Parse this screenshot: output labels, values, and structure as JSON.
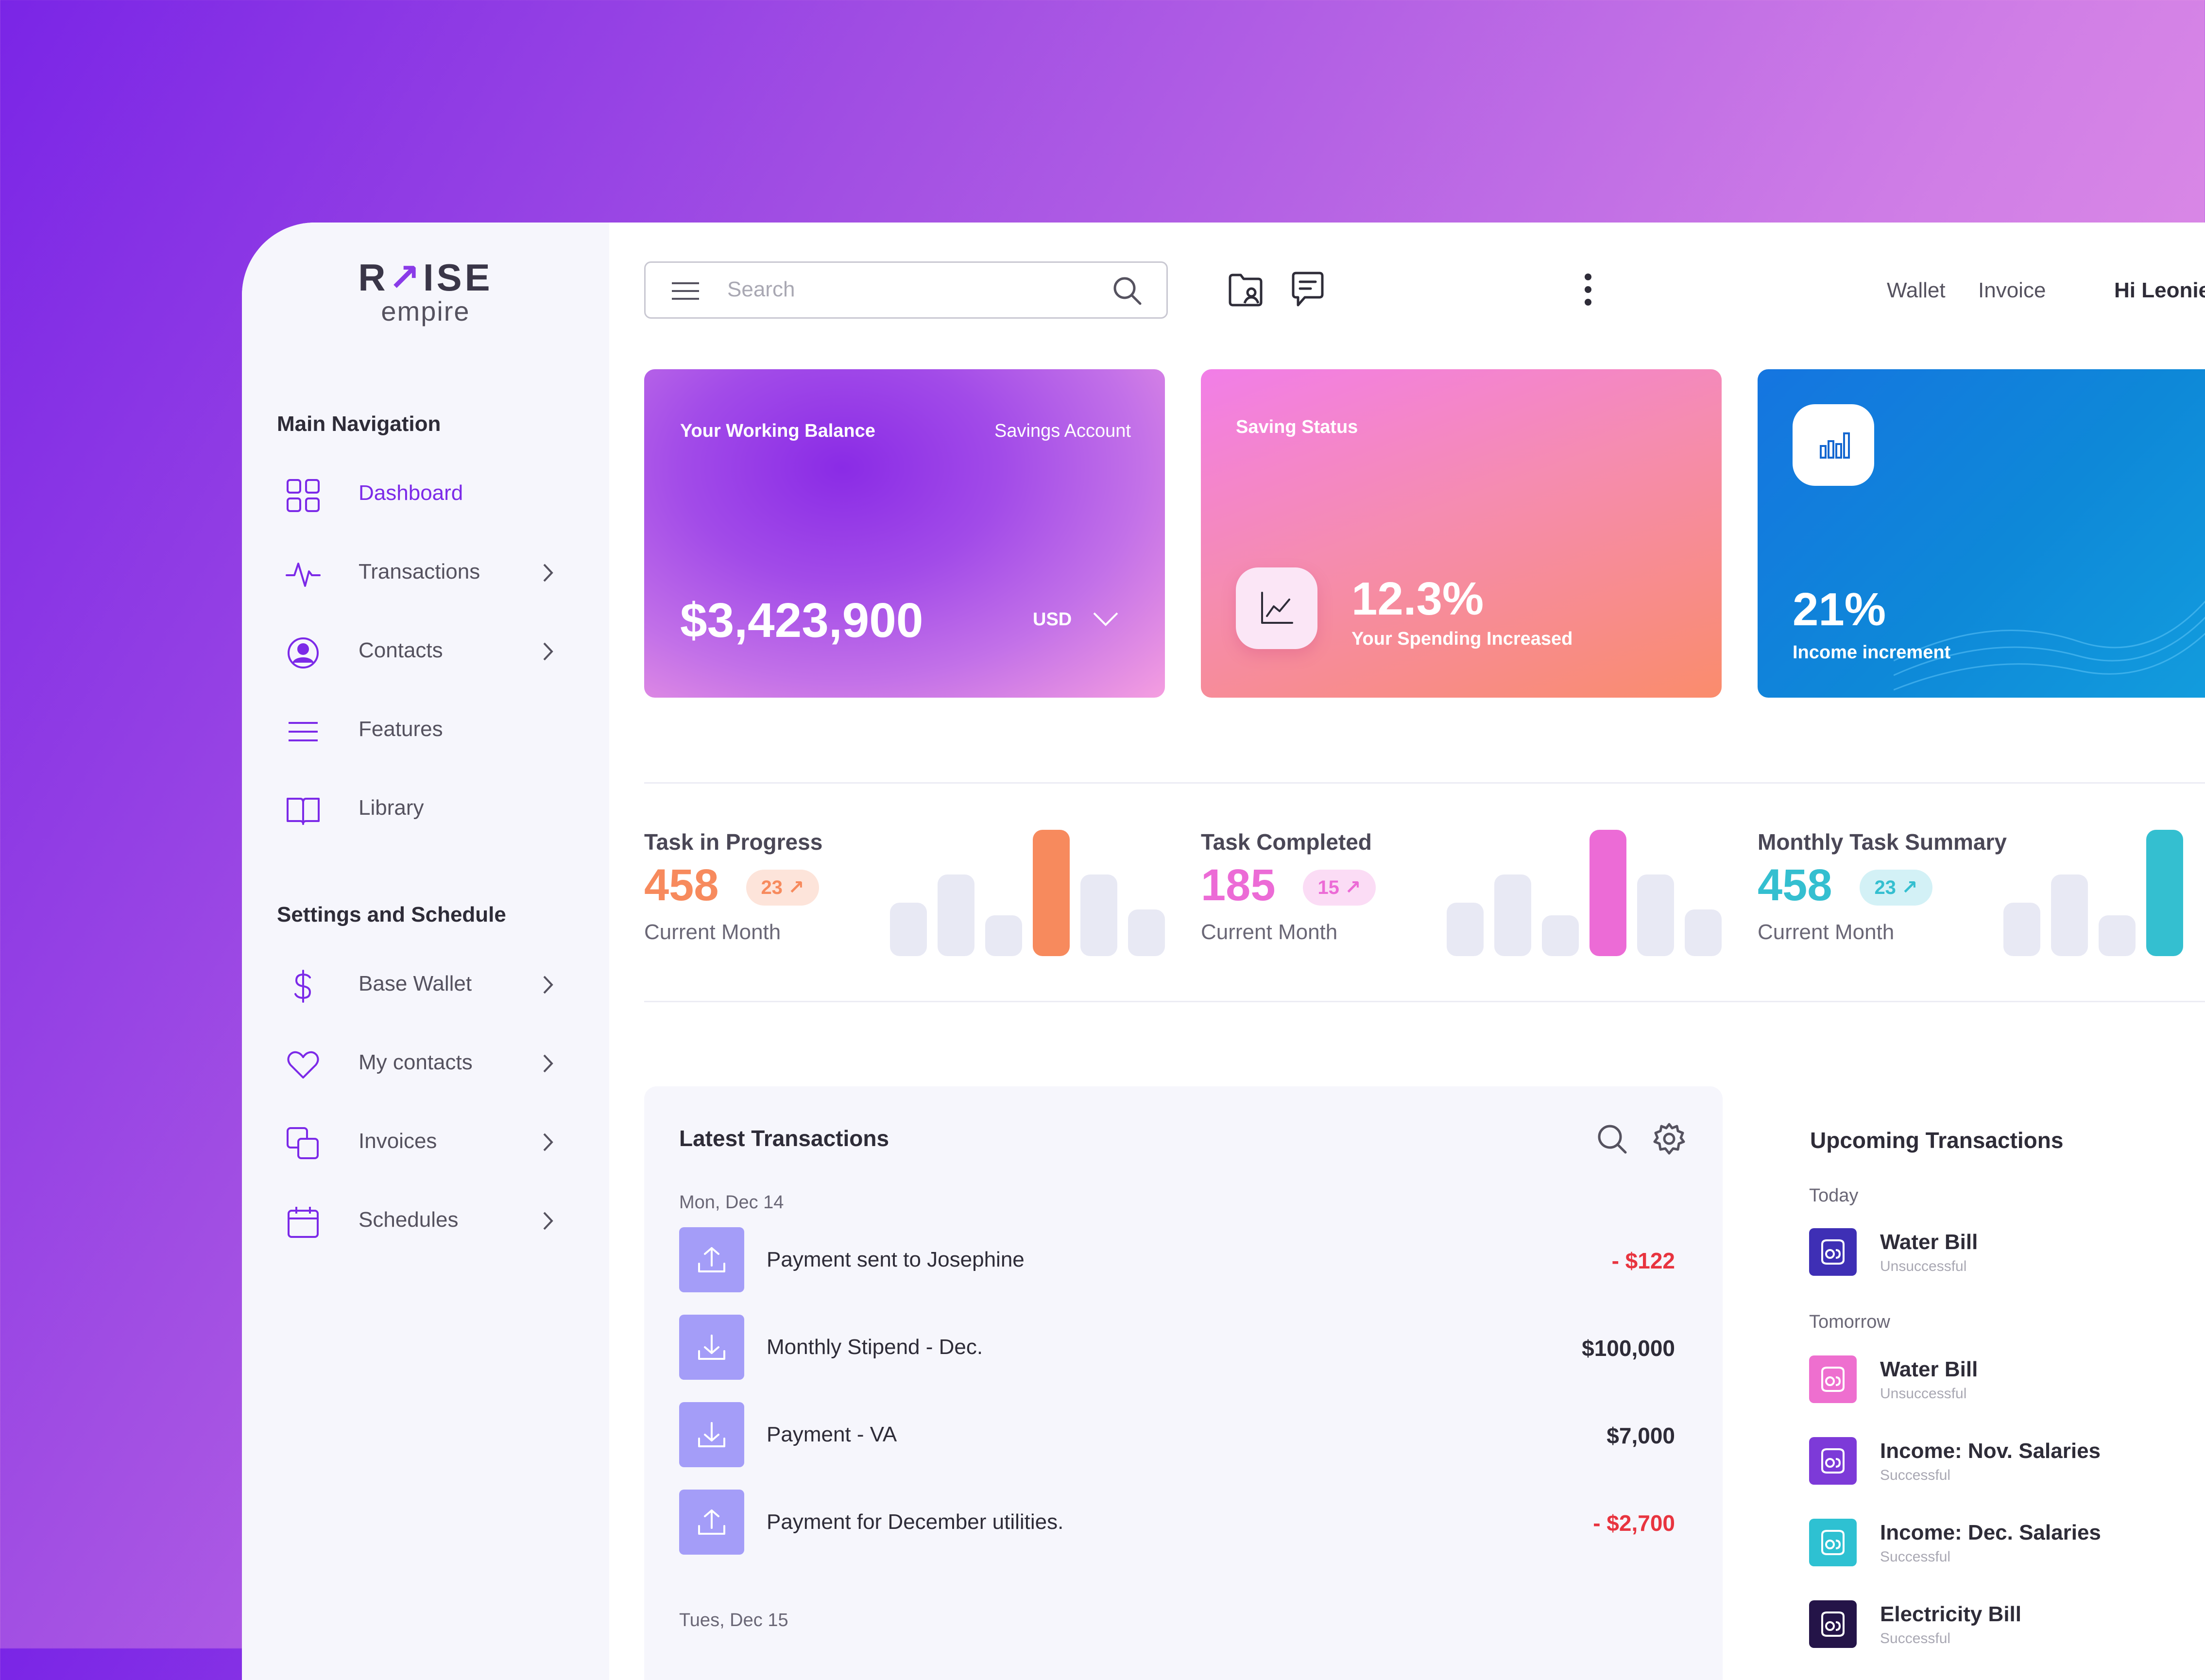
{
  "brand": {
    "logo_top_1": "R",
    "logo_arrow": "↗",
    "logo_top_2": "ISE",
    "logo_bottom": "empire"
  },
  "sidebar": {
    "main_heading": "Main Navigation",
    "main_items": [
      {
        "label": "Dashboard",
        "icon": "grid-icon",
        "active": true
      },
      {
        "label": "Transactions",
        "icon": "pulse-icon"
      },
      {
        "label": "Contacts",
        "icon": "user-circle-icon"
      },
      {
        "label": "Features",
        "icon": "menu-lines-icon"
      },
      {
        "label": "Library",
        "icon": "book-icon"
      }
    ],
    "settings_heading": "Settings and Schedule",
    "settings_items": [
      {
        "label": "Base Wallet",
        "icon": "dollar-icon"
      },
      {
        "label": "My contacts",
        "icon": "heart-icon"
      },
      {
        "label": "Invoices",
        "icon": "copy-icon"
      },
      {
        "label": "Schedules",
        "icon": "calendar-icon"
      }
    ],
    "accent": "#7c2ae8"
  },
  "header": {
    "search_placeholder": "Search",
    "links": [
      "Wallet",
      "Invoice"
    ],
    "greeting": "Hi Leonie"
  },
  "cards": {
    "balance": {
      "title": "Your Working Balance",
      "account": "Savings Account",
      "amount": "$3,423,900",
      "currency": "USD"
    },
    "saving": {
      "title": "Saving Status",
      "percent": "12.3%",
      "caption": "Your Spending Increased"
    },
    "income": {
      "percent": "21%",
      "caption": "Income increment"
    }
  },
  "stats": [
    {
      "title": "Task in Progress",
      "value": "458",
      "badge": "23 ↗",
      "sub": "Current Month",
      "color": "#f78a5d",
      "badge_bg": "#fde4da"
    },
    {
      "title": "Task Completed",
      "value": "185",
      "badge": "15 ↗",
      "sub": "Current Month",
      "color": "#ec6bd6",
      "badge_bg": "#fbdcf5"
    },
    {
      "title": "Monthly Task Summary",
      "value": "458",
      "badge": "23 ↗",
      "sub": "Current Month",
      "color": "#34bfd0",
      "badge_bg": "#d3f1f6"
    }
  ],
  "latest": {
    "title": "Latest Transactions",
    "date_1": "Mon, Dec 14",
    "date_2": "Tues, Dec 15",
    "rows": [
      {
        "label": "Payment sent to Josephine",
        "amount": "- $122",
        "direction": "upload-icon",
        "negative": true
      },
      {
        "label": "Monthly Stipend - Dec.",
        "amount": "$100,000",
        "direction": "download-icon",
        "negative": false
      },
      {
        "label": "Payment - VA",
        "amount": "$7,000",
        "direction": "download-icon",
        "negative": false
      },
      {
        "label": "Payment for December utilities.",
        "amount": "- $2,700",
        "direction": "upload-icon",
        "negative": true
      }
    ]
  },
  "upcoming": {
    "title": "Upcoming Transactions",
    "group_1": "Today",
    "group_2": "Tomorrow",
    "items": [
      {
        "name": "Water Bill",
        "status": "Unsuccessful",
        "color": "#3e2fb5"
      },
      {
        "name": "Water Bill",
        "status": "Unsuccessful",
        "color": "#ee6fcf"
      },
      {
        "name": "Income: Nov. Salaries",
        "status": "Successful",
        "color": "#7d3ad8"
      },
      {
        "name": "Income: Dec. Salaries",
        "status": "Successful",
        "color": "#2ec1d2"
      },
      {
        "name": "Electricity Bill",
        "status": "Successful",
        "color": "#241448"
      }
    ]
  }
}
